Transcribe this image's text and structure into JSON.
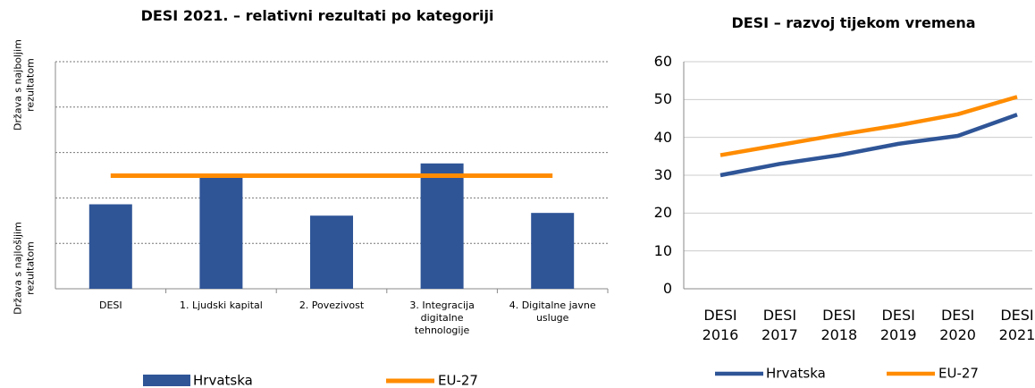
{
  "chart_data": [
    {
      "type": "bar",
      "title": "DESI 2021. – relativni rezultati po kategoriji",
      "y_label_top": "Država s najboljim rezultatom",
      "y_label_bottom": "Država s najlošijim rezultatom",
      "categories": [
        "DESI",
        "1. Ljudski kapital",
        "2. Povezivost",
        "3. Integracija digitalne tehnologije",
        "4. Digitalne javne usluge"
      ],
      "ylim": [
        0,
        5
      ],
      "yticks": [
        0,
        1,
        2,
        3,
        4,
        5
      ],
      "grid": true,
      "series": [
        {
          "name": "Hrvatska",
          "color": "#2f5597",
          "type": "bar",
          "values": [
            1.86,
            2.47,
            1.61,
            2.76,
            1.67
          ]
        },
        {
          "name": "EU-27",
          "color": "#ff8c00",
          "type": "line",
          "values": [
            2.49,
            2.49,
            2.49,
            2.49,
            2.49
          ]
        }
      ]
    },
    {
      "type": "line",
      "title": "DESI – razvoj tijekom vremena",
      "categories": [
        "DESI 2016",
        "DESI 2017",
        "DESI 2018",
        "DESI 2019",
        "DESI 2020",
        "DESI 2021"
      ],
      "ylim": [
        0,
        60
      ],
      "yticks": [
        0,
        10,
        20,
        30,
        40,
        50,
        60
      ],
      "grid": true,
      "series": [
        {
          "name": "Hrvatska",
          "color": "#2f5597",
          "values": [
            30,
            33,
            35.3,
            38.3,
            40.4,
            46
          ]
        },
        {
          "name": "EU-27",
          "color": "#ff8c00",
          "values": [
            35.3,
            38,
            40.7,
            43.2,
            46.1,
            50.7
          ]
        }
      ]
    }
  ]
}
